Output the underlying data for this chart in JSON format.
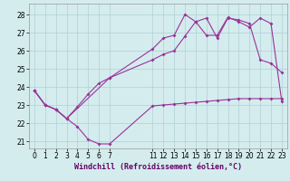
{
  "xlabel": "Windchill (Refroidissement éolien,°C)",
  "background_color": "#d4ecee",
  "grid_color": "#b0d0d4",
  "line_color": "#993399",
  "spine_color": "#999999",
  "xlim": [
    -0.5,
    23.5
  ],
  "ylim": [
    20.6,
    28.6
  ],
  "yticks": [
    21,
    22,
    23,
    24,
    25,
    26,
    27,
    28
  ],
  "xticks": [
    0,
    1,
    2,
    3,
    4,
    5,
    6,
    7,
    11,
    12,
    13,
    14,
    15,
    16,
    17,
    18,
    19,
    20,
    21,
    22,
    23
  ],
  "line1_x": [
    0,
    1,
    2,
    3,
    4,
    5,
    6,
    7,
    11,
    12,
    13,
    14,
    15,
    16,
    17,
    18,
    19,
    20,
    21,
    22,
    23
  ],
  "line1_y": [
    23.8,
    23.0,
    22.75,
    22.25,
    21.8,
    21.1,
    20.85,
    20.85,
    22.95,
    23.0,
    23.05,
    23.1,
    23.15,
    23.2,
    23.25,
    23.3,
    23.35,
    23.35,
    23.35,
    23.35,
    23.35
  ],
  "line2_x": [
    0,
    1,
    2,
    3,
    4,
    5,
    6,
    7,
    11,
    12,
    13,
    14,
    15,
    16,
    17,
    18,
    19,
    20,
    21,
    22,
    23
  ],
  "line2_y": [
    23.8,
    23.0,
    22.75,
    22.25,
    22.9,
    23.6,
    24.2,
    24.5,
    25.5,
    25.8,
    26.0,
    26.8,
    27.6,
    27.8,
    26.7,
    27.8,
    27.7,
    27.5,
    25.5,
    25.3,
    24.8
  ],
  "line3_x": [
    0,
    1,
    2,
    3,
    7,
    11,
    12,
    13,
    14,
    15,
    16,
    17,
    18,
    19,
    20,
    21,
    22,
    23
  ],
  "line3_y": [
    23.8,
    23.0,
    22.75,
    22.25,
    24.5,
    26.1,
    26.7,
    26.85,
    28.0,
    27.6,
    26.85,
    26.85,
    27.85,
    27.6,
    27.3,
    27.8,
    27.5,
    23.2
  ],
  "marker": "D",
  "markersize": 2.0,
  "linewidth": 0.8,
  "tick_labelsize": 5.5,
  "xlabel_fontsize": 6.0
}
